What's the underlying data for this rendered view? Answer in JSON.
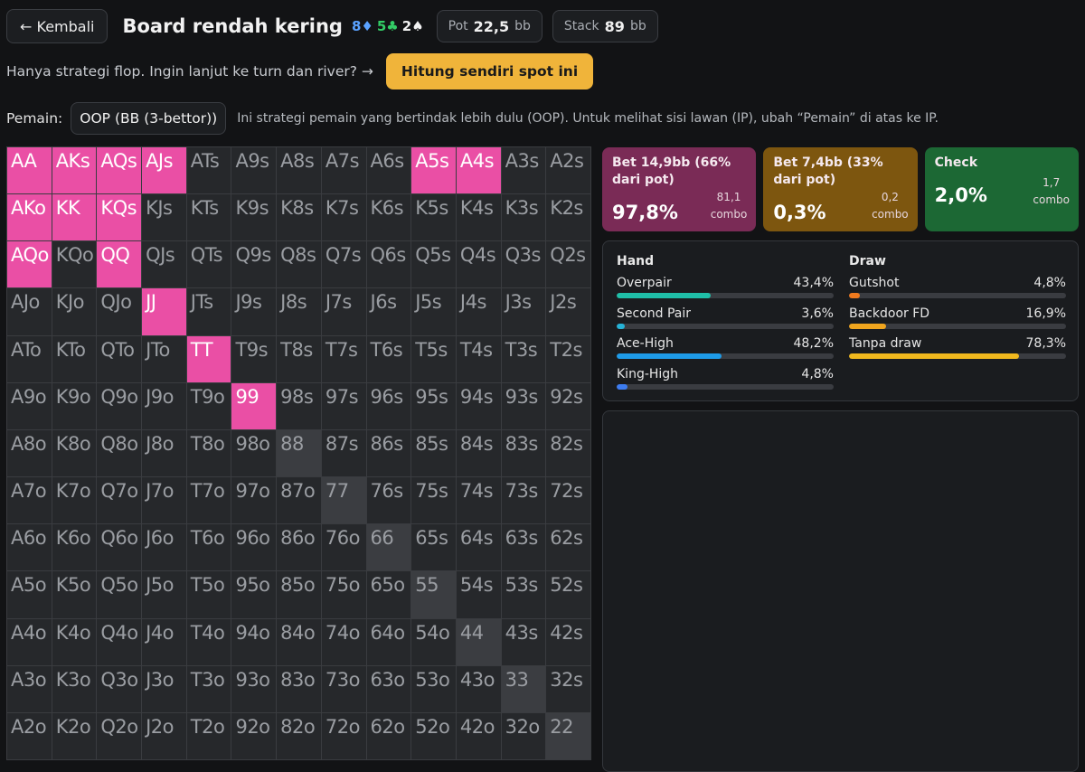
{
  "header": {
    "back_label": "← Kembali",
    "title": "Board rendah kering",
    "board": [
      {
        "rank": "8",
        "suit": "♦",
        "color": "#5aa2ff"
      },
      {
        "rank": "5",
        "suit": "♣",
        "color": "#33cc66"
      },
      {
        "rank": "2",
        "suit": "♠",
        "color": "#f2f2f2"
      }
    ],
    "pot_label": "Pot",
    "pot_value": "22,5",
    "pot_unit": "bb",
    "stack_label": "Stack",
    "stack_value": "89",
    "stack_unit": "bb"
  },
  "notice": {
    "text": "Hanya strategi flop. Ingin lanjut ke turn dan river? →",
    "cta_label": "Hitung sendiri spot ini"
  },
  "player": {
    "label": "Pemain:",
    "selected": "OOP (BB (3-bettor))",
    "description": "Ini strategi pemain yang bertindak lebih dulu (OOP). Untuk melihat sisi lawan (IP), ubah “Pemain” di atas ke IP."
  },
  "grid": {
    "ranks": [
      "A",
      "K",
      "Q",
      "J",
      "T",
      "9",
      "8",
      "7",
      "6",
      "5",
      "4",
      "3",
      "2"
    ],
    "hot_cells": [
      "AA",
      "AKs",
      "AQs",
      "AJs",
      "A5s",
      "A4s",
      "AKo",
      "KK",
      "KQs",
      "AQo",
      "QQ",
      "JJ",
      "TT",
      "99"
    ],
    "hot_color": "#ea4fa5"
  },
  "actions": [
    {
      "id": "bet66",
      "name": "Bet 14,9bb (66% dari pot)",
      "pct": "97,8%",
      "combo_value": "81,1",
      "combo_label": "combo"
    },
    {
      "id": "bet33",
      "name": "Bet 7,4bb (33% dari pot)",
      "pct": "0,3%",
      "combo_value": "0,2",
      "combo_label": "combo"
    },
    {
      "id": "check",
      "name": "Check",
      "pct": "2,0%",
      "combo_value": "1,7",
      "combo_label": "combo"
    }
  ],
  "stats": {
    "hand_title": "Hand",
    "hand": [
      {
        "label": "Overpair",
        "value": "43,4%",
        "pct": 43.4,
        "color": "#1fbfa8"
      },
      {
        "label": "Second Pair",
        "value": "3,6%",
        "pct": 3.6,
        "color": "#26b2d6"
      },
      {
        "label": "Ace-High",
        "value": "48,2%",
        "pct": 48.2,
        "color": "#1e9be8"
      },
      {
        "label": "King-High",
        "value": "4,8%",
        "pct": 4.8,
        "color": "#3d7cf0"
      }
    ],
    "draw_title": "Draw",
    "draw": [
      {
        "label": "Gutshot",
        "value": "4,8%",
        "pct": 4.8,
        "color": "#f07a1e"
      },
      {
        "label": "Backdoor FD",
        "value": "16,9%",
        "pct": 16.9,
        "color": "#f0a51e"
      },
      {
        "label": "Tanpa draw",
        "value": "78,3%",
        "pct": 78.3,
        "color": "#f0b81e"
      }
    ]
  }
}
